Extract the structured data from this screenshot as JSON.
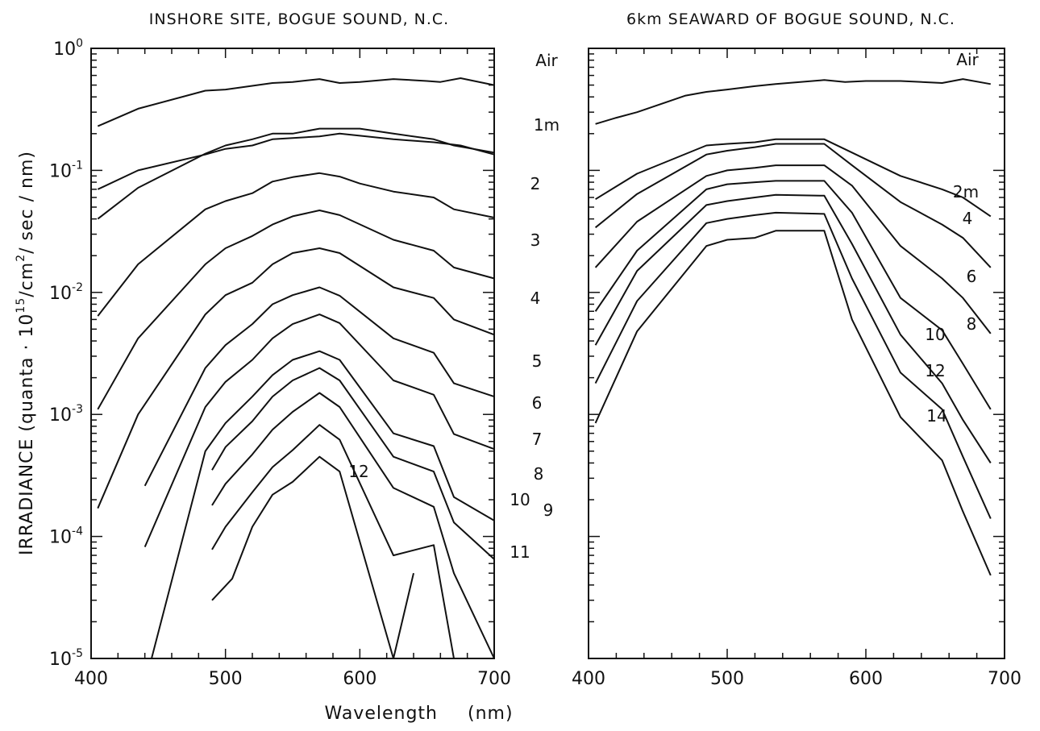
{
  "figure": {
    "xlabel": "Wavelength",
    "xunit": "(nm)",
    "ylabel_pre": "IRRADIANCE (quanta · 10",
    "ylabel_exp1": "15",
    "ylabel_mid": "/cm",
    "ylabel_exp2": "2",
    "ylabel_post": "/ sec / nm)"
  },
  "chart_data": [
    {
      "type": "line",
      "title": "INSHORE SITE, BOGUE SOUND, N.C.",
      "xlim": [
        400,
        700
      ],
      "ylim": [
        1e-05,
        1
      ],
      "yscale": "log",
      "xticks": [
        400,
        500,
        600,
        700
      ],
      "yticks": [
        {
          "base": "10",
          "exp": "0",
          "value": 1
        },
        {
          "base": "10",
          "exp": "-1",
          "value": 0.1
        },
        {
          "base": "10",
          "exp": "-2",
          "value": 0.01
        },
        {
          "base": "10",
          "exp": "-3",
          "value": 0.001
        },
        {
          "base": "10",
          "exp": "-4",
          "value": 0.0001
        },
        {
          "base": "10",
          "exp": "-5",
          "value": 1e-05
        }
      ],
      "series": [
        {
          "name": "Air",
          "x": [
            405,
            435,
            485,
            500,
            535,
            550,
            570,
            585,
            600,
            625,
            650,
            660,
            675,
            700
          ],
          "y": [
            0.23,
            0.32,
            0.45,
            0.46,
            0.52,
            0.53,
            0.56,
            0.52,
            0.53,
            0.56,
            0.54,
            0.53,
            0.57,
            0.5
          ]
        },
        {
          "name": "1m",
          "x": [
            405,
            435,
            485,
            500,
            520,
            535,
            570,
            585,
            625,
            655,
            675,
            700
          ],
          "y": [
            0.07,
            0.1,
            0.135,
            0.15,
            0.16,
            0.18,
            0.19,
            0.2,
            0.18,
            0.17,
            0.16,
            0.135
          ]
        },
        {
          "name": "2",
          "x": [
            405,
            435,
            485,
            500,
            520,
            535,
            550,
            570,
            585,
            600,
            625,
            655,
            670,
            700
          ],
          "y": [
            0.04,
            0.072,
            0.137,
            0.16,
            0.18,
            0.2,
            0.2,
            0.22,
            0.22,
            0.22,
            0.2,
            0.18,
            0.16,
            0.14
          ]
        },
        {
          "name": "3",
          "x": [
            405,
            435,
            485,
            500,
            520,
            535,
            550,
            570,
            585,
            600,
            625,
            655,
            670,
            700
          ],
          "y": [
            0.0064,
            0.017,
            0.048,
            0.056,
            0.065,
            0.081,
            0.088,
            0.095,
            0.089,
            0.078,
            0.067,
            0.06,
            0.048,
            0.041
          ]
        },
        {
          "name": "4",
          "x": [
            405,
            435,
            485,
            500,
            520,
            535,
            550,
            570,
            585,
            625,
            655,
            670,
            700
          ],
          "y": [
            0.0011,
            0.0042,
            0.017,
            0.023,
            0.029,
            0.036,
            0.042,
            0.047,
            0.043,
            0.027,
            0.022,
            0.016,
            0.013
          ]
        },
        {
          "name": "5",
          "x": [
            405,
            435,
            485,
            500,
            520,
            535,
            550,
            570,
            585,
            625,
            655,
            670,
            700
          ],
          "y": [
            0.00017,
            0.001,
            0.0066,
            0.0095,
            0.012,
            0.017,
            0.021,
            0.023,
            0.021,
            0.011,
            0.009,
            0.006,
            0.0045
          ]
        },
        {
          "name": "6",
          "x": [
            440,
            485,
            500,
            520,
            535,
            550,
            570,
            585,
            625,
            655,
            670,
            700
          ],
          "y": [
            0.00026,
            0.0024,
            0.0037,
            0.0055,
            0.008,
            0.0095,
            0.011,
            0.0094,
            0.0042,
            0.0032,
            0.0018,
            0.0014
          ]
        },
        {
          "name": "7",
          "x": [
            440,
            485,
            500,
            520,
            535,
            550,
            570,
            585,
            625,
            655,
            670,
            700
          ],
          "y": [
            8.2e-05,
            0.00115,
            0.00185,
            0.0028,
            0.0042,
            0.0055,
            0.0066,
            0.0056,
            0.0019,
            0.00145,
            0.00069,
            0.00052
          ]
        },
        {
          "name": "8",
          "x": [
            445,
            485,
            500,
            520,
            535,
            550,
            570,
            585,
            625,
            655,
            670,
            700
          ],
          "y": [
            1e-05,
            0.0005,
            0.00085,
            0.0014,
            0.0021,
            0.0028,
            0.0033,
            0.0028,
            0.0007,
            0.00055,
            0.00021,
            0.000135
          ]
        },
        {
          "name": "9",
          "x": [
            490,
            500,
            520,
            535,
            550,
            570,
            585,
            625,
            655,
            670,
            700
          ],
          "y": [
            0.00035,
            0.00054,
            0.00088,
            0.0014,
            0.0019,
            0.0024,
            0.0019,
            0.00045,
            0.00034,
            0.00013,
            6.5e-05
          ]
        },
        {
          "name": "10",
          "x": [
            490,
            500,
            520,
            535,
            550,
            570,
            585,
            625,
            655,
            670,
            700
          ],
          "y": [
            0.00018,
            0.00027,
            0.00047,
            0.00075,
            0.00105,
            0.0015,
            0.00115,
            0.00025,
            0.000175,
            5e-05,
            1e-05
          ]
        },
        {
          "name": "11",
          "x": [
            490,
            500,
            520,
            535,
            550,
            570,
            585,
            625,
            655,
            670
          ],
          "y": [
            7.8e-05,
            0.00012,
            0.00023,
            0.00037,
            0.00051,
            0.00082,
            0.00062,
            7e-05,
            8.5e-05,
            6.5e-06
          ]
        },
        {
          "name": "12",
          "x": [
            490,
            505,
            520,
            535,
            550,
            570,
            585,
            625,
            640
          ],
          "y": [
            3e-05,
            4.5e-05,
            0.00012,
            0.00022,
            0.00028,
            0.00045,
            0.00034,
            9e-06,
            5e-05
          ]
        }
      ]
    },
    {
      "type": "line",
      "title": "6km SEAWARD OF BOGUE SOUND, N.C.",
      "xlim": [
        400,
        700
      ],
      "ylim": [
        1e-05,
        1
      ],
      "yscale": "log",
      "xticks": [
        400,
        500,
        600,
        700
      ],
      "yticks": [],
      "series": [
        {
          "name": "Air",
          "x": [
            405,
            420,
            435,
            470,
            485,
            500,
            520,
            535,
            570,
            585,
            600,
            625,
            655,
            670,
            690
          ],
          "y": [
            0.24,
            0.27,
            0.3,
            0.41,
            0.44,
            0.46,
            0.49,
            0.51,
            0.55,
            0.53,
            0.54,
            0.54,
            0.52,
            0.56,
            0.51
          ]
        },
        {
          "name": "2m",
          "x": [
            405,
            435,
            485,
            500,
            520,
            535,
            570,
            590,
            625,
            655,
            670,
            690
          ],
          "y": [
            0.058,
            0.094,
            0.16,
            0.165,
            0.17,
            0.18,
            0.18,
            0.14,
            0.09,
            0.07,
            0.06,
            0.042
          ]
        },
        {
          "name": "4",
          "x": [
            405,
            435,
            485,
            500,
            520,
            535,
            570,
            590,
            625,
            655,
            670,
            690
          ],
          "y": [
            0.034,
            0.064,
            0.135,
            0.145,
            0.155,
            0.165,
            0.165,
            0.11,
            0.055,
            0.036,
            0.028,
            0.016
          ]
        },
        {
          "name": "6",
          "x": [
            405,
            435,
            485,
            500,
            520,
            535,
            570,
            590,
            625,
            655,
            670,
            690
          ],
          "y": [
            0.016,
            0.038,
            0.09,
            0.1,
            0.105,
            0.11,
            0.11,
            0.075,
            0.024,
            0.013,
            0.009,
            0.0046
          ]
        },
        {
          "name": "8",
          "x": [
            405,
            435,
            485,
            500,
            520,
            535,
            570,
            590,
            625,
            655,
            670,
            690
          ],
          "y": [
            0.007,
            0.022,
            0.07,
            0.077,
            0.08,
            0.082,
            0.082,
            0.045,
            0.009,
            0.0049,
            0.0026,
            0.0011
          ]
        },
        {
          "name": "10",
          "x": [
            405,
            435,
            485,
            500,
            520,
            535,
            570,
            590,
            625,
            655,
            670,
            690
          ],
          "y": [
            0.0037,
            0.015,
            0.052,
            0.056,
            0.06,
            0.063,
            0.062,
            0.025,
            0.0045,
            0.0018,
            0.0009,
            0.0004
          ]
        },
        {
          "name": "12",
          "x": [
            405,
            435,
            485,
            500,
            520,
            535,
            570,
            590,
            625,
            655,
            670,
            690
          ],
          "y": [
            0.0018,
            0.0085,
            0.037,
            0.04,
            0.043,
            0.045,
            0.044,
            0.013,
            0.0022,
            0.0011,
            0.00045,
            0.00014
          ]
        },
        {
          "name": "14",
          "x": [
            405,
            435,
            485,
            500,
            520,
            535,
            570,
            590,
            625,
            655,
            670,
            690
          ],
          "y": [
            0.00085,
            0.0048,
            0.024,
            0.027,
            0.028,
            0.032,
            0.032,
            0.006,
            0.00095,
            0.00042,
            0.00016,
            4.8e-05
          ]
        }
      ]
    }
  ]
}
